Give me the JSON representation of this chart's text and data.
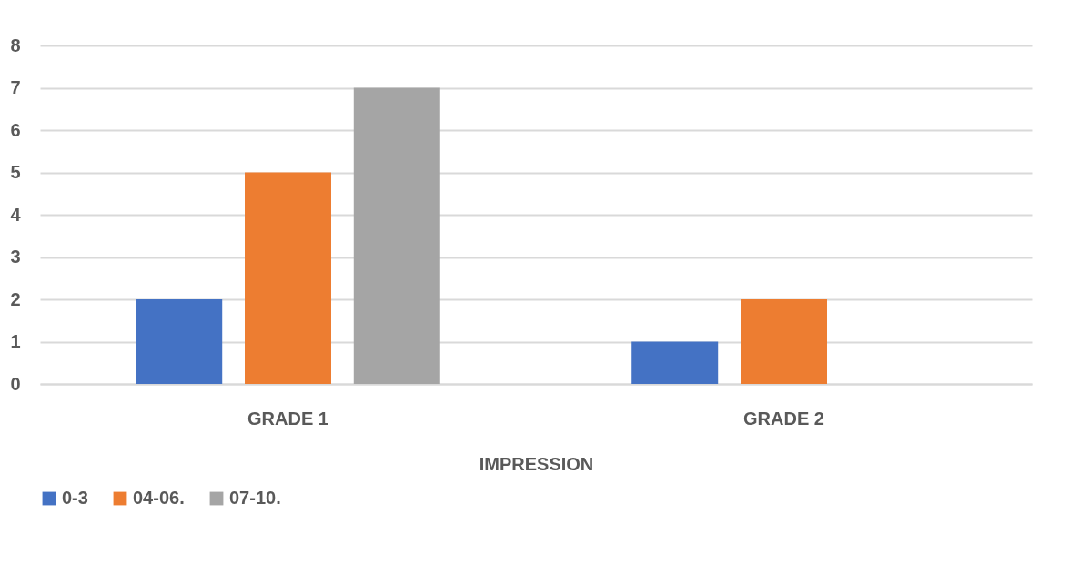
{
  "chart_data": {
    "type": "bar",
    "xlabel": "IMPRESSION",
    "categories": [
      "GRADE 1",
      "GRADE 2"
    ],
    "series": [
      {
        "name": "0-3",
        "color": "#4472c4",
        "values": [
          2,
          1
        ]
      },
      {
        "name": "04-06.",
        "color": "#ed7d31",
        "values": [
          5,
          2
        ]
      },
      {
        "name": "07-10.",
        "color": "#a5a5a5",
        "values": [
          7,
          null
        ]
      }
    ],
    "ylim": [
      0,
      8
    ],
    "yticks": [
      0,
      1,
      2,
      3,
      4,
      5,
      6,
      7,
      8
    ],
    "grid": "y",
    "legend": "bottom"
  }
}
